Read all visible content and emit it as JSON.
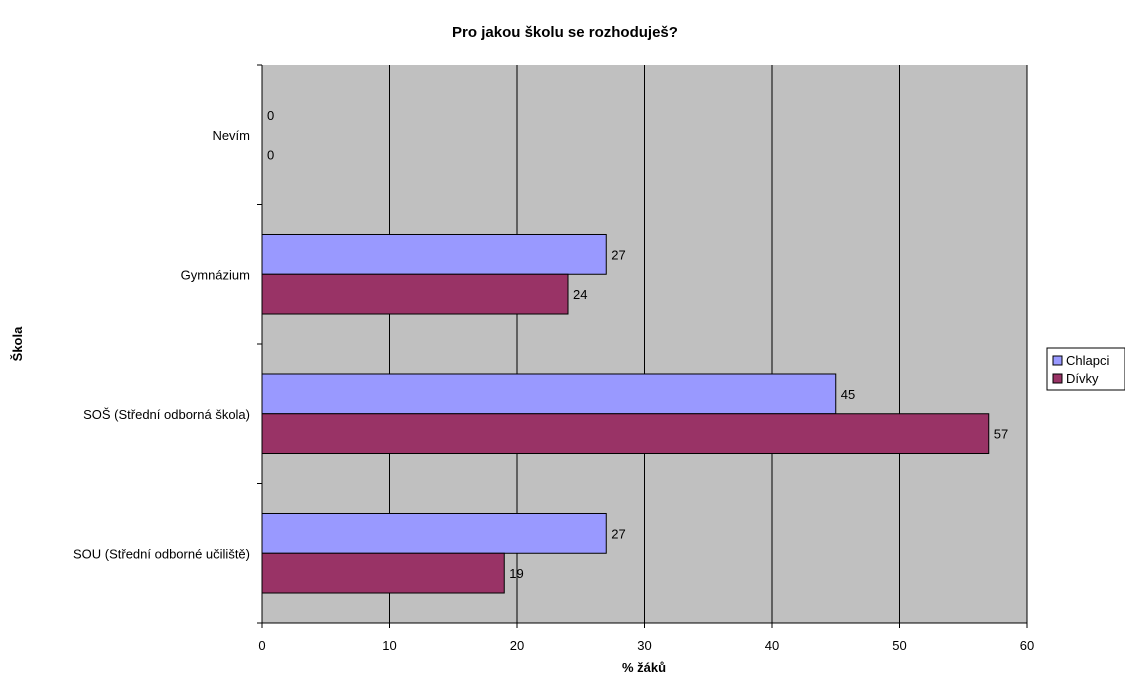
{
  "chart_data": {
    "type": "bar",
    "orientation": "horizontal",
    "title": "Pro jakou školu se rozhoduješ?",
    "xlabel": "% žáků",
    "ylabel": "Škola",
    "xlim": [
      0,
      60
    ],
    "xticks": [
      0,
      10,
      20,
      30,
      40,
      50,
      60
    ],
    "grid": true,
    "legend_position": "right",
    "categories": [
      "Nevím",
      "Gymnázium",
      "SOŠ (Střední odborná škola)",
      "SOU (Střední odborné učiliště)"
    ],
    "series": [
      {
        "name": "Chlapci",
        "color": "#9999ff",
        "values": [
          0,
          27,
          45,
          27
        ],
        "labels": [
          "0",
          "27",
          "45",
          "27"
        ]
      },
      {
        "name": "Dívky",
        "color": "#993366",
        "values": [
          0,
          24,
          57,
          19
        ],
        "labels": [
          "0",
          "24",
          "57",
          "19"
        ]
      }
    ],
    "plot_background": "#c0c0c0"
  }
}
